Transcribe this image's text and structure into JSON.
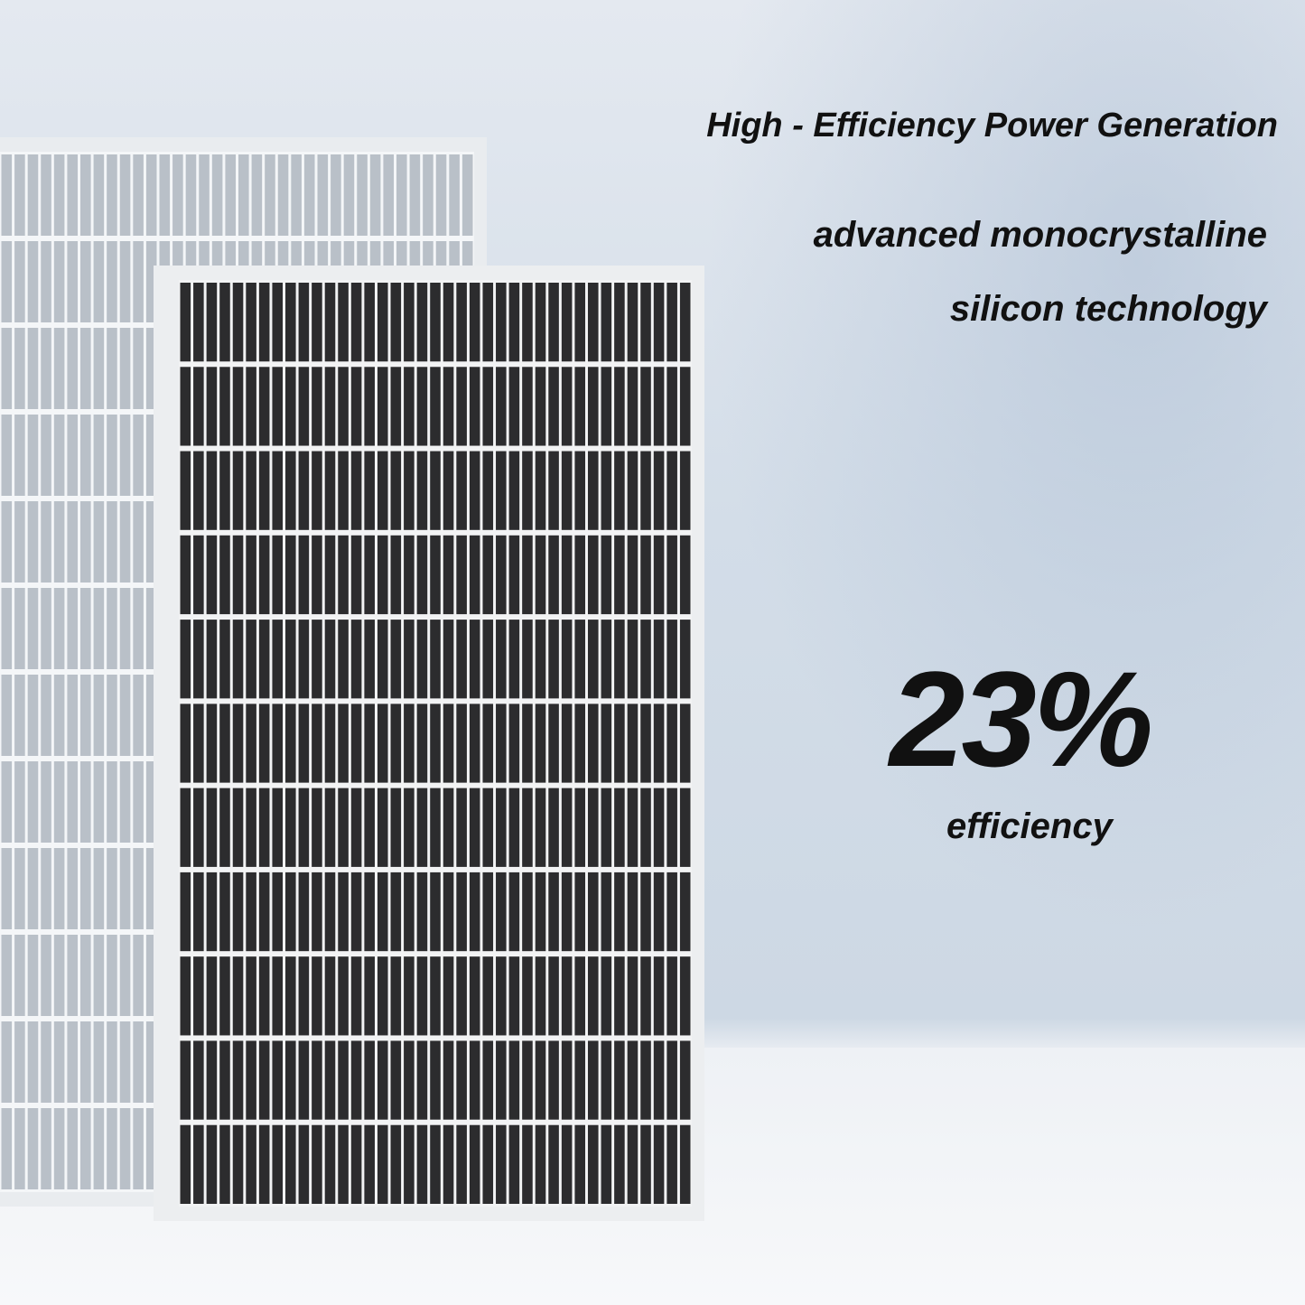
{
  "headline": "High - Efficiency Power Generation",
  "subtitle_line1": "advanced monocrystalline",
  "subtitle_line2": "silicon technology",
  "efficiency_value": "23%",
  "efficiency_label": "efficiency",
  "colors": {
    "text": "#111111",
    "cell": "#2a2a2a",
    "frame": "#eef0f2",
    "background": "#d3dde8"
  }
}
